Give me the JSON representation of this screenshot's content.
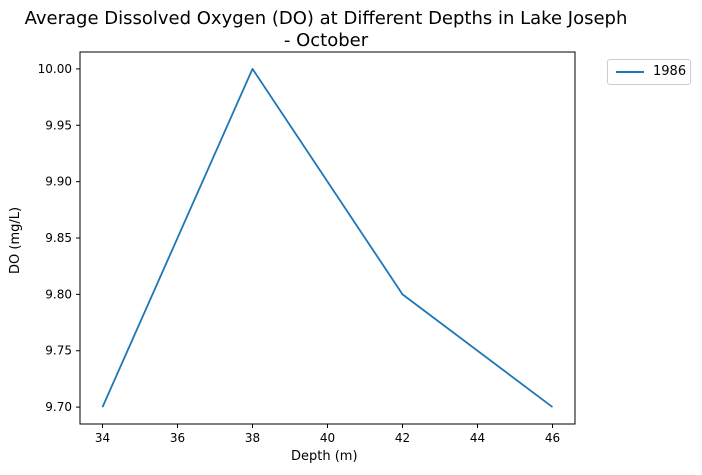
{
  "chart_data": {
    "type": "line",
    "title_line1": "Average Dissolved Oxygen (DO) at Different Depths in Lake Joseph",
    "title_line2": "- October",
    "xlabel": "Depth (m)",
    "ylabel": "DO (mg/L)",
    "x": [
      34,
      38,
      42,
      46
    ],
    "series": [
      {
        "name": "1986",
        "values": [
          9.7,
          10.0,
          9.8,
          9.7
        ],
        "color": "#1f77b4"
      }
    ],
    "xlim": [
      33.4,
      46.6
    ],
    "ylim": [
      9.685,
      10.015
    ],
    "xticks": [
      34,
      36,
      38,
      40,
      42,
      44,
      46
    ],
    "yticks": [
      9.7,
      9.75,
      9.8,
      9.85,
      9.9,
      9.95,
      10.0
    ],
    "ytick_labels": [
      "9.70",
      "9.75",
      "9.80",
      "9.85",
      "9.90",
      "9.95",
      "10.00"
    ],
    "grid": false,
    "legend_position": "outside-top-right"
  }
}
